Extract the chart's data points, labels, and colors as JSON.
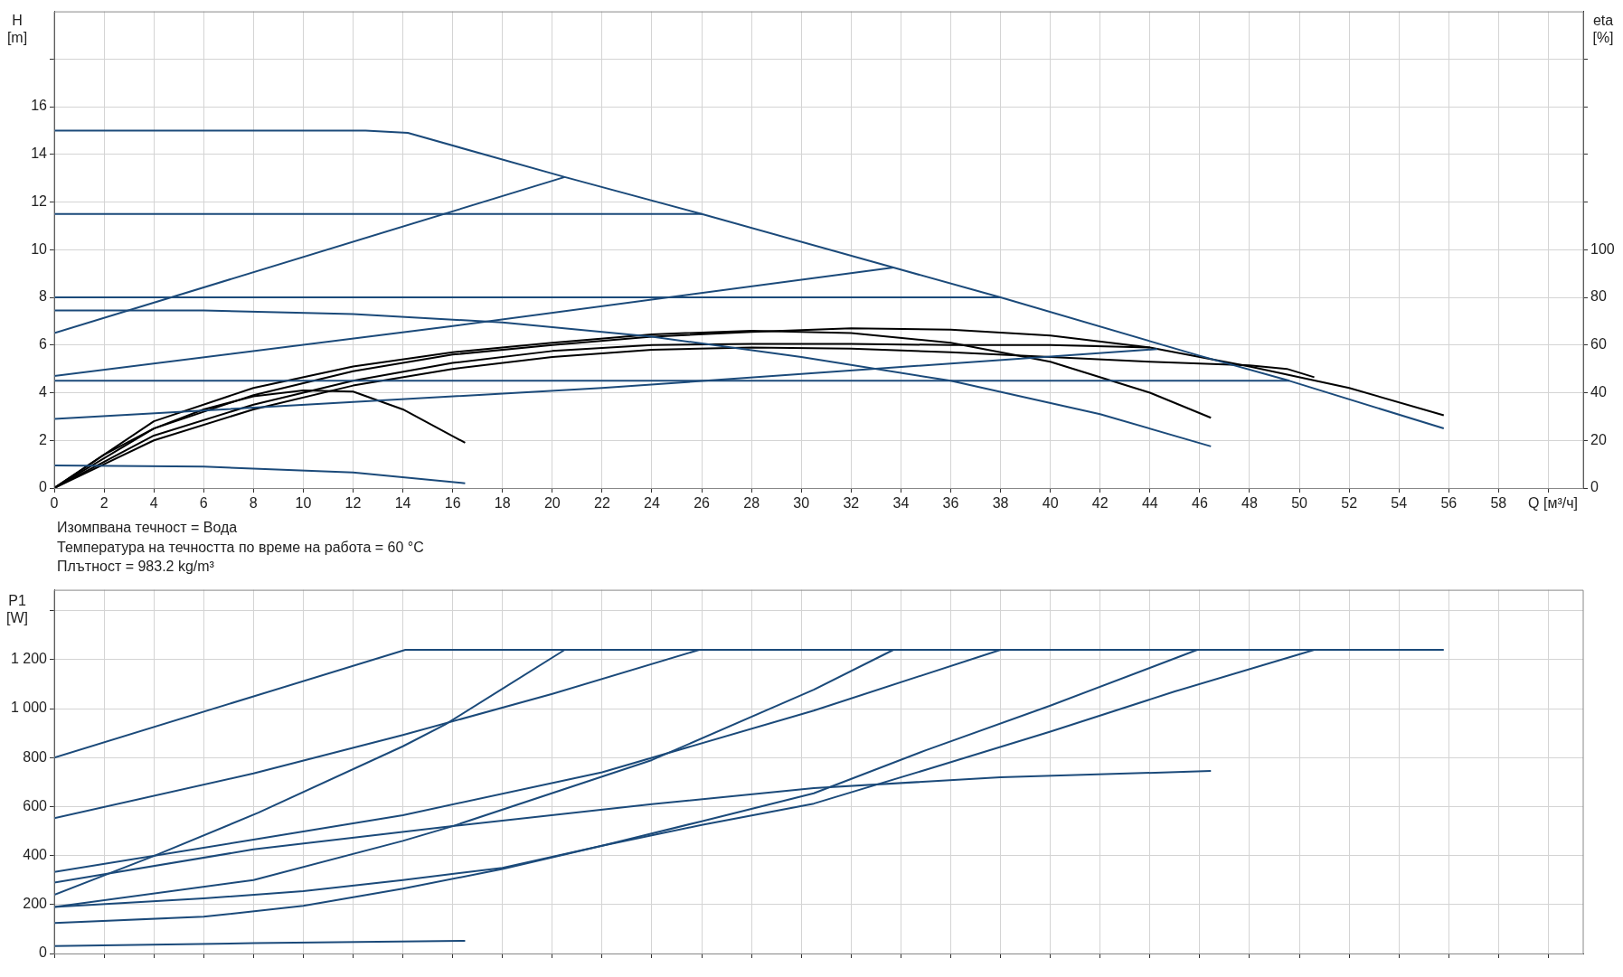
{
  "chart_data": [
    {
      "type": "line",
      "ylabel": "H [m]",
      "y2label": "eta [%]",
      "xlabel": "Q [м³/ч]",
      "annotations": [
        "Изомпвана течност = Вода",
        "Температура на течността по време на работа = 60 °C",
        "Плътност = 983.2 kg/m³"
      ],
      "xlim": [
        0,
        61.4
      ],
      "xticks": [
        0,
        2,
        4,
        6,
        8,
        10,
        12,
        14,
        16,
        18,
        20,
        22,
        24,
        26,
        28,
        30,
        32,
        34,
        36,
        38,
        40,
        42,
        44,
        46,
        48,
        50,
        52,
        54,
        56,
        58,
        {
          "value": 60,
          "label": null
        }
      ],
      "ylim": [
        0,
        20
      ],
      "yticks": [
        0,
        2,
        4,
        6,
        8,
        10,
        12,
        14,
        16,
        {
          "value": 18,
          "label": null
        }
      ],
      "y2lim": [
        0,
        200
      ],
      "y2ticks": [
        0,
        20,
        40,
        60,
        80,
        100,
        {
          "value": 120,
          "label": null
        },
        {
          "value": 140,
          "label": null
        },
        {
          "value": 160,
          "label": null
        },
        {
          "value": 180,
          "label": null
        }
      ],
      "grid": true,
      "legend": false,
      "marker": "none",
      "series": [
        {
          "color": "#1b4a7a",
          "x": [
            0,
            12.5,
            14.2,
            20.5,
            26,
            33.7,
            38,
            46,
            49.6,
            55.8
          ],
          "values": [
            15,
            15,
            14.9,
            13.05,
            11.5,
            9.25,
            8.0,
            5.55,
            4.5,
            2.5
          ]
        },
        {
          "color": "#1b4a7a",
          "x": [
            0,
            26
          ],
          "values": [
            11.5,
            11.5
          ]
        },
        {
          "color": "#1b4a7a",
          "x": [
            0,
            38
          ],
          "values": [
            8.0,
            8.0
          ]
        },
        {
          "color": "#1b4a7a",
          "x": [
            0,
            49.6
          ],
          "values": [
            4.5,
            4.5
          ]
        },
        {
          "color": "#1b4a7a",
          "x": [
            0,
            20.5
          ],
          "values": [
            6.5,
            13.05
          ]
        },
        {
          "color": "#1b4a7a",
          "x": [
            0,
            16,
            33.7
          ],
          "values": [
            4.7,
            6.8,
            9.25
          ]
        },
        {
          "color": "#1b4a7a",
          "x": [
            0,
            22,
            44.3
          ],
          "values": [
            2.9,
            4.2,
            5.83
          ]
        },
        {
          "color": "#1b4a7a",
          "x": [
            0,
            6,
            12,
            18,
            24,
            30,
            36,
            42,
            46.45
          ],
          "values": [
            7.45,
            7.45,
            7.3,
            6.95,
            6.35,
            5.5,
            4.5,
            3.1,
            1.75
          ]
        },
        {
          "color": "#1b4a7a",
          "x": [
            0,
            6,
            12,
            16.5
          ],
          "values": [
            0.95,
            0.9,
            0.65,
            0.2
          ]
        },
        {
          "color": "#000000",
          "axis": "y2",
          "x": [
            0,
            2,
            4,
            6,
            8,
            10,
            12,
            14,
            16.5
          ],
          "values": [
            0,
            14,
            25,
            33,
            38.5,
            41,
            40.5,
            33,
            19
          ]
        },
        {
          "color": "#000000",
          "axis": "y2",
          "x": [
            0,
            4,
            8,
            12,
            16,
            20,
            24,
            28,
            32,
            36,
            40,
            44,
            46.45
          ],
          "values": [
            0,
            28,
            42,
            51,
            57,
            61,
            64.5,
            66,
            65,
            61,
            53,
            40,
            29.5
          ]
        },
        {
          "color": "#000000",
          "axis": "y2",
          "x": [
            0,
            4,
            8,
            12,
            16,
            20,
            24,
            28,
            32,
            36,
            40,
            44,
            48,
            52,
            55.8
          ],
          "values": [
            0,
            25,
            39,
            49,
            56,
            60,
            63.5,
            65.5,
            67,
            66.5,
            64,
            59,
            51,
            42,
            30.5
          ]
        },
        {
          "color": "#000000",
          "axis": "y2",
          "x": [
            0,
            4,
            8,
            12,
            16,
            20,
            24,
            28,
            32,
            36,
            40,
            44
          ],
          "values": [
            0,
            22,
            35,
            45,
            52.5,
            57.5,
            60,
            60.5,
            60.5,
            60,
            60,
            59
          ]
        },
        {
          "color": "#000000",
          "axis": "y2",
          "x": [
            0,
            4,
            8,
            12,
            16,
            20,
            24,
            28,
            32,
            36,
            40,
            44,
            48,
            49.5,
            50.6
          ],
          "values": [
            0,
            20,
            33,
            43,
            50,
            55,
            58,
            59,
            58.5,
            57,
            55,
            53,
            51.5,
            50,
            46.5
          ]
        }
      ]
    },
    {
      "type": "line",
      "ylabel": "P1 [W]",
      "tick_labels": "y",
      "xlim": [
        0,
        61.4
      ],
      "xticks": [
        0,
        2,
        4,
        6,
        8,
        10,
        12,
        14,
        16,
        18,
        20,
        22,
        24,
        26,
        28,
        30,
        32,
        34,
        36,
        38,
        40,
        42,
        44,
        46,
        48,
        50,
        52,
        54,
        56,
        58,
        60
      ],
      "ylim": [
        0,
        1485
      ],
      "yticks": [
        0,
        200,
        400,
        600,
        800,
        {
          "value": 1000,
          "label": "1 000"
        },
        {
          "value": 1200,
          "label": "1 200"
        },
        {
          "value": 1400,
          "label": null
        }
      ],
      "grid": true,
      "legend": false,
      "marker": "none",
      "series": [
        {
          "color": "#1b4a7a",
          "x": [
            0,
            14.1,
            55.8
          ],
          "values": [
            800,
            1240,
            1240
          ]
        },
        {
          "color": "#1b4a7a",
          "x": [
            0,
            8,
            14,
            20,
            25.9
          ],
          "values": [
            553,
            735,
            892,
            1060,
            1240
          ]
        },
        {
          "color": "#1b4a7a",
          "x": [
            0,
            4,
            8.2,
            14,
            15.7,
            20.5
          ],
          "values": [
            240,
            398,
            575,
            846,
            935,
            1240
          ]
        },
        {
          "color": "#1b4a7a",
          "x": [
            0,
            8,
            14,
            22,
            30.5,
            38
          ],
          "values": [
            333,
            465,
            565,
            740,
            992,
            1240
          ]
        },
        {
          "color": "#1b4a7a",
          "x": [
            0,
            8,
            14,
            16,
            24,
            30.5,
            33.7
          ],
          "values": [
            190,
            300,
            460,
            520,
            790,
            1077,
            1240
          ]
        },
        {
          "color": "#1b4a7a",
          "x": [
            0,
            6,
            10,
            14,
            18,
            22,
            26,
            30.5,
            35,
            40,
            45.9
          ],
          "values": [
            125,
            150,
            195,
            265,
            345,
            440,
            540,
            654,
            830,
            1012,
            1240
          ]
        },
        {
          "color": "#1b4a7a",
          "x": [
            0,
            6,
            10,
            14,
            18,
            22,
            26,
            30.5,
            35,
            40,
            45,
            50.6
          ],
          "values": [
            190,
            225,
            255,
            300,
            350,
            440,
            525,
            612,
            750,
            906,
            1070,
            1240
          ]
        },
        {
          "color": "#1b4a7a",
          "x": [
            0,
            8,
            16,
            24,
            30.5,
            38,
            46.45
          ],
          "values": [
            290,
            425,
            520,
            610,
            675,
            720,
            745
          ]
        },
        {
          "color": "#1b4a7a",
          "x": [
            0,
            8,
            16.5
          ],
          "values": [
            30,
            42,
            52
          ]
        }
      ]
    }
  ]
}
